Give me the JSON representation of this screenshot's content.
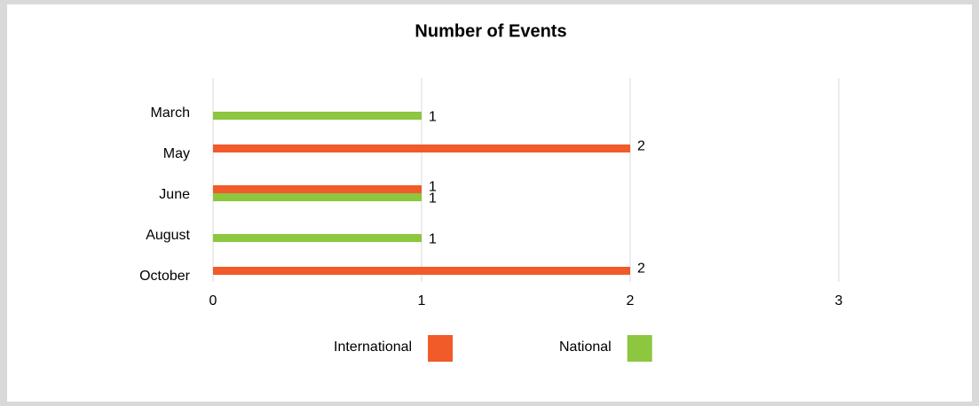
{
  "chart_data": {
    "type": "bar",
    "orientation": "horizontal",
    "title": "Number of Events",
    "categories": [
      "March",
      "May",
      "June",
      "August",
      "October"
    ],
    "series": [
      {
        "name": "International",
        "color": "#f15a29",
        "values": [
          null,
          2,
          1,
          null,
          2
        ]
      },
      {
        "name": "National",
        "color": "#8dc63f",
        "values": [
          1,
          null,
          1,
          1,
          null
        ]
      }
    ],
    "xlim": [
      0,
      3
    ],
    "xticks": [
      0,
      1,
      2,
      3
    ],
    "grid": true,
    "legend": "bottom"
  }
}
